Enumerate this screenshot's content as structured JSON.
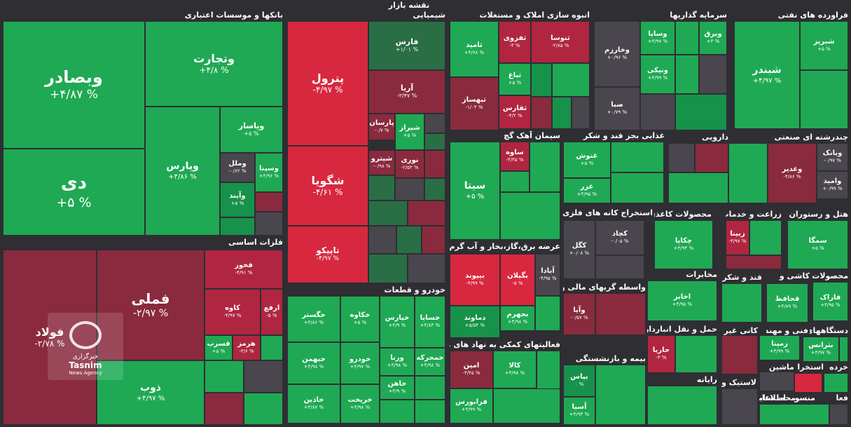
{
  "title": "نقشه بازار",
  "colors": {
    "bg": "#2e2e33",
    "up_strong": "#1fa954",
    "up_mid": "#17924a",
    "up_weak": "#2a6e46",
    "neutral": "#4a464d",
    "down_weak": "#8a2a3e",
    "down_mid": "#b02640",
    "down_strong": "#d8283f"
  },
  "watermark": {
    "icon": "tasnim-logo-icon",
    "line1": "خبرگزاری",
    "line2": "Tasnim",
    "line3": "News Agency"
  },
  "sectors": [
    {
      "label": "بانکها و موسسات اعتباری"
    },
    {
      "label": "شیمیایی"
    },
    {
      "label": "انبوه سازی املاک و مستغلات"
    },
    {
      "label": "سرمایه گذاریها"
    },
    {
      "label": "فراورده های نفتی"
    },
    {
      "label": "فلزات اساسی"
    },
    {
      "label": "خودرو و قطعات"
    },
    {
      "label": "سیمان آهک گچ"
    },
    {
      "label": "غذایی بجز قند و شکر"
    },
    {
      "label": "دارویی"
    },
    {
      "label": "چندرشته ای صنعتی"
    },
    {
      "label": "استخراج کانه های فلزی"
    },
    {
      "label": "محصولات کاغذی"
    },
    {
      "label": "زراعت و خدمات"
    },
    {
      "label": "هتل و رستوران"
    },
    {
      "label": "عرضه برق،گاز،بخار و آب گرم"
    },
    {
      "label": "مخابرات"
    },
    {
      "label": "قند و شکر"
    },
    {
      "label": "محصولات"
    },
    {
      "label": "واسطه گریهای مالی و پولی"
    },
    {
      "label": "کاشی و"
    },
    {
      "label": "حمل و نقل انبارداری و"
    },
    {
      "label": "کانی غیر"
    },
    {
      "label": "فنی و مهندسی"
    },
    {
      "label": "دستگاههای"
    },
    {
      "label": "فعالیتهای کمکی به نهاد های مالی"
    },
    {
      "label": "بیمه و بازنشستگی"
    },
    {
      "label": "رایانه"
    },
    {
      "label": "لاستیک و"
    },
    {
      "label": "ماشین"
    },
    {
      "label": "استخرا"
    },
    {
      "label": "خرده"
    },
    {
      "label": "سایر"
    },
    {
      "label": "محه"
    },
    {
      "label": "منسوج"
    },
    {
      "label": "اطلاعات"
    },
    {
      "label": "فعا"
    }
  ],
  "tiles": [
    {
      "name": "وبصادر",
      "pct": "+۴/۸۷ %",
      "c": "up_strong"
    },
    {
      "name": "دی",
      "pct": "+۵ %",
      "c": "up_strong"
    },
    {
      "name": "وتجارت",
      "pct": "+۴/۸ %",
      "c": "up_strong"
    },
    {
      "name": "وپارس",
      "pct": "+۴/۸۶ %",
      "c": "up_strong"
    },
    {
      "name": "وپاسار",
      "pct": "+۵ %",
      "c": "up_strong"
    },
    {
      "name": "وملل",
      "pct": "-۰/۶۲ %",
      "c": "neutral"
    },
    {
      "name": "وسینا",
      "pct": "+۴/۹۶ %",
      "c": "up_strong"
    },
    {
      "name": "وآیند",
      "pct": "+۵ %",
      "c": "up_mid"
    },
    {
      "name": "پترول",
      "pct": "-۴/۹۷ %",
      "c": "down_strong"
    },
    {
      "name": "شگویا",
      "pct": "-۴/۶۱ %",
      "c": "down_strong"
    },
    {
      "name": "تاپیکو",
      "pct": "-۴/۹۷ %",
      "c": "down_strong"
    },
    {
      "name": "فارس",
      "pct": "+۱/۰۱ %",
      "c": "up_weak"
    },
    {
      "name": "آریا",
      "pct": "-۳/۴۷ %",
      "c": "down_weak"
    },
    {
      "name": "پارسان",
      "pct": "-۰/۷ %",
      "c": "down_weak"
    },
    {
      "name": "شیراز",
      "pct": "+۵ %",
      "c": "up_strong"
    },
    {
      "name": "شیترو",
      "pct": "-۰/۹۸ %",
      "c": "down_weak"
    },
    {
      "name": "نوری",
      "pct": "-۲/۵۳ %",
      "c": "down_weak"
    },
    {
      "name": "ثامید",
      "pct": "+۴/۶۸ %",
      "c": "up_strong"
    },
    {
      "name": "ثفزوی",
      "pct": "-۳ %",
      "c": "down_mid"
    },
    {
      "name": "ثنوسا",
      "pct": "-۲/۸۵ %",
      "c": "down_mid"
    },
    {
      "name": "ثباغ",
      "pct": "+۵ %",
      "c": "up_strong"
    },
    {
      "name": "ثبهساز",
      "pct": "-۱/۰۴ %",
      "c": "down_weak"
    },
    {
      "name": "ثفارس",
      "pct": "-۴/۲ %",
      "c": "down_mid"
    },
    {
      "name": "وخارزم",
      "pct": "+۰/۹۶ %",
      "c": "neutral"
    },
    {
      "name": "صبا",
      "pct": "+۰/۷۹ %",
      "c": "neutral"
    },
    {
      "name": "وساپا",
      "pct": "+۴/۹۷ %",
      "c": "up_strong"
    },
    {
      "name": "وبرق",
      "pct": "+۳ %",
      "c": "up_strong"
    },
    {
      "name": "ونیکی",
      "pct": "+۴/۹۹ %",
      "c": "up_strong"
    },
    {
      "name": "شبریز",
      "pct": "+۵ %",
      "c": "up_strong"
    },
    {
      "name": "شبندر",
      "pct": "+۴/۹۷ %",
      "c": "up_strong"
    },
    {
      "name": "فملی",
      "pct": "-۲/۹۷ %",
      "c": "down_weak"
    },
    {
      "name": "فولاد",
      "pct": "-۲/۷۸ %",
      "c": "down_weak"
    },
    {
      "name": "ذوب",
      "pct": "+۴/۹۷ %",
      "c": "up_strong"
    },
    {
      "name": "فخوز",
      "pct": "-۴/۹۱ %",
      "c": "down_mid"
    },
    {
      "name": "کاوه",
      "pct": "-۴/۹۷ %",
      "c": "down_mid"
    },
    {
      "name": "ارفع",
      "pct": "-۵ %",
      "c": "down_mid"
    },
    {
      "name": "فسرب",
      "pct": "+۵ %",
      "c": "up_strong"
    },
    {
      "name": "هرمز",
      "pct": "-۳/۶ %",
      "c": "down_mid"
    },
    {
      "name": "خگستر",
      "pct": "+۴/۸۶ %",
      "c": "up_strong"
    },
    {
      "name": "خکاوه",
      "pct": "+۵ %",
      "c": "up_strong"
    },
    {
      "name": "خپارس",
      "pct": "+۴/۹ %",
      "c": "up_strong"
    },
    {
      "name": "خساپا",
      "pct": "+۴/۸۳ %",
      "c": "up_strong"
    },
    {
      "name": "خبهمن",
      "pct": "+۴/۹۸ %",
      "c": "up_strong"
    },
    {
      "name": "خودرو",
      "pct": "+۴/۹۷ %",
      "c": "up_strong"
    },
    {
      "name": "ورنا",
      "pct": "+۴/۹۸ %",
      "c": "up_strong"
    },
    {
      "name": "خمحرکه",
      "pct": "+۴/۹۸ %",
      "c": "up_strong"
    },
    {
      "name": "خاهن",
      "pct": "+۴/۹ %",
      "c": "up_strong"
    },
    {
      "name": "خاذین",
      "pct": "+۴/۸۷ %",
      "c": "up_strong"
    },
    {
      "name": "خریخت",
      "pct": "+۴/۹۸ %",
      "c": "up_strong"
    },
    {
      "name": "سیتا",
      "pct": "+۵ %",
      "c": "up_strong"
    },
    {
      "name": "ساوه",
      "pct": "-۴/۴۵ %",
      "c": "down_mid"
    },
    {
      "name": "غنوش",
      "pct": "+۵ %",
      "c": "up_strong"
    },
    {
      "name": "غزر",
      "pct": "+۴/۹۵ %",
      "c": "up_strong"
    },
    {
      "name": "وغدیر",
      "pct": "-۴/۸۶ %",
      "c": "down_weak"
    },
    {
      "name": "وبانک",
      "pct": "-۰/۹۷ %",
      "c": "neutral"
    },
    {
      "name": "وامید",
      "pct": "+۰/۹۹ %",
      "c": "neutral"
    },
    {
      "name": "کچاد",
      "pct": "-۰/۰۵ %",
      "c": "neutral"
    },
    {
      "name": "کگل",
      "pct": "+۰/۰۸ %",
      "c": "neutral"
    },
    {
      "name": "چکاپا",
      "pct": "+۴/۹۴ %",
      "c": "up_strong"
    },
    {
      "name": "زبینا",
      "pct": "-۴/۹۷ %",
      "c": "down_mid"
    },
    {
      "name": "سمگا",
      "pct": "+۵ %",
      "c": "up_strong"
    },
    {
      "name": "بیپوند",
      "pct": "-۴/۹۹ %",
      "c": "down_strong"
    },
    {
      "name": "بگیلان",
      "pct": "-۵ %",
      "c": "down_strong"
    },
    {
      "name": "آبادا",
      "pct": "-۴/۹۵ %",
      "c": "neutral"
    },
    {
      "name": "بجهرم",
      "pct": "+۴/۹۸ %",
      "c": "up_strong"
    },
    {
      "name": "دماوند",
      "pct": "+۵/۵۴ %",
      "c": "up_mid"
    },
    {
      "name": "اخابر",
      "pct": "+۴/۹۵ %",
      "c": "up_strong"
    },
    {
      "name": "قحافظ",
      "pct": "+۴/۸۹ %",
      "c": "up_strong"
    },
    {
      "name": "فاراک",
      "pct": "+۴/۹۵ %",
      "c": "up_strong"
    },
    {
      "name": "وآیا",
      "pct": "-۰/۵۷ %",
      "c": "down_weak"
    },
    {
      "name": "حاریا",
      "pct": "-۳ %",
      "c": "down_mid"
    },
    {
      "name": "رمپنا",
      "pct": "+۴/۹۹ %",
      "c": "up_strong"
    },
    {
      "name": "بترانس",
      "pct": "+۴/۹۷ %",
      "c": "up_strong"
    },
    {
      "name": "امین",
      "pct": "-۳/۴۵ %",
      "c": "down_weak"
    },
    {
      "name": "کالا",
      "pct": "+۴/۹۸ %",
      "c": "up_strong"
    },
    {
      "name": "فرابورس",
      "pct": "+۴/۹۹ %",
      "c": "up_strong"
    },
    {
      "name": "بپاس",
      "pct": "۰ %",
      "c": "up_mid"
    },
    {
      "name": "آسیا",
      "pct": "+۴/۹۳ %",
      "c": "up_strong"
    }
  ]
}
